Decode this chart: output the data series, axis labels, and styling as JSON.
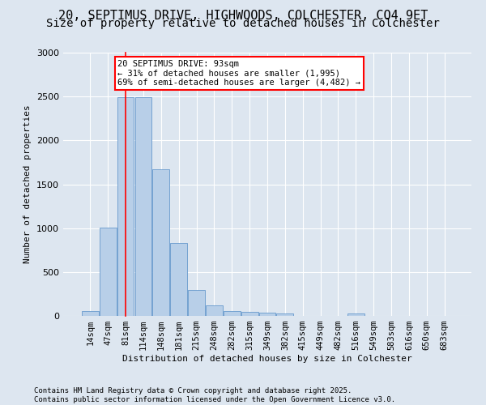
{
  "title_line1": "20, SEPTIMUS DRIVE, HIGHWOODS, COLCHESTER, CO4 9ET",
  "title_line2": "Size of property relative to detached houses in Colchester",
  "xlabel": "Distribution of detached houses by size in Colchester",
  "ylabel": "Number of detached properties",
  "footer_line1": "Contains HM Land Registry data © Crown copyright and database right 2025.",
  "footer_line2": "Contains public sector information licensed under the Open Government Licence v3.0.",
  "bar_labels": [
    "14sqm",
    "47sqm",
    "81sqm",
    "114sqm",
    "148sqm",
    "181sqm",
    "215sqm",
    "248sqm",
    "282sqm",
    "315sqm",
    "349sqm",
    "382sqm",
    "415sqm",
    "449sqm",
    "482sqm",
    "516sqm",
    "549sqm",
    "583sqm",
    "616sqm",
    "650sqm",
    "683sqm"
  ],
  "bar_values": [
    55,
    1005,
    2490,
    2490,
    1670,
    830,
    295,
    120,
    55,
    50,
    35,
    30,
    0,
    0,
    0,
    25,
    0,
    0,
    0,
    0,
    0
  ],
  "bar_color": "#b8cfe8",
  "bar_edge_color": "#6699cc",
  "background_color": "#dde6f0",
  "annotation_text": "20 SEPTIMUS DRIVE: 93sqm\n← 31% of detached houses are smaller (1,995)\n69% of semi-detached houses are larger (4,482) →",
  "red_line_x": 2.0,
  "ylim": [
    0,
    3000
  ],
  "yticks": [
    0,
    500,
    1000,
    1500,
    2000,
    2500,
    3000
  ],
  "grid_color": "#ffffff",
  "title_fontsize": 11,
  "subtitle_fontsize": 10,
  "label_fontsize": 7.5,
  "annotation_fontsize": 7.5,
  "footer_fontsize": 6.5
}
